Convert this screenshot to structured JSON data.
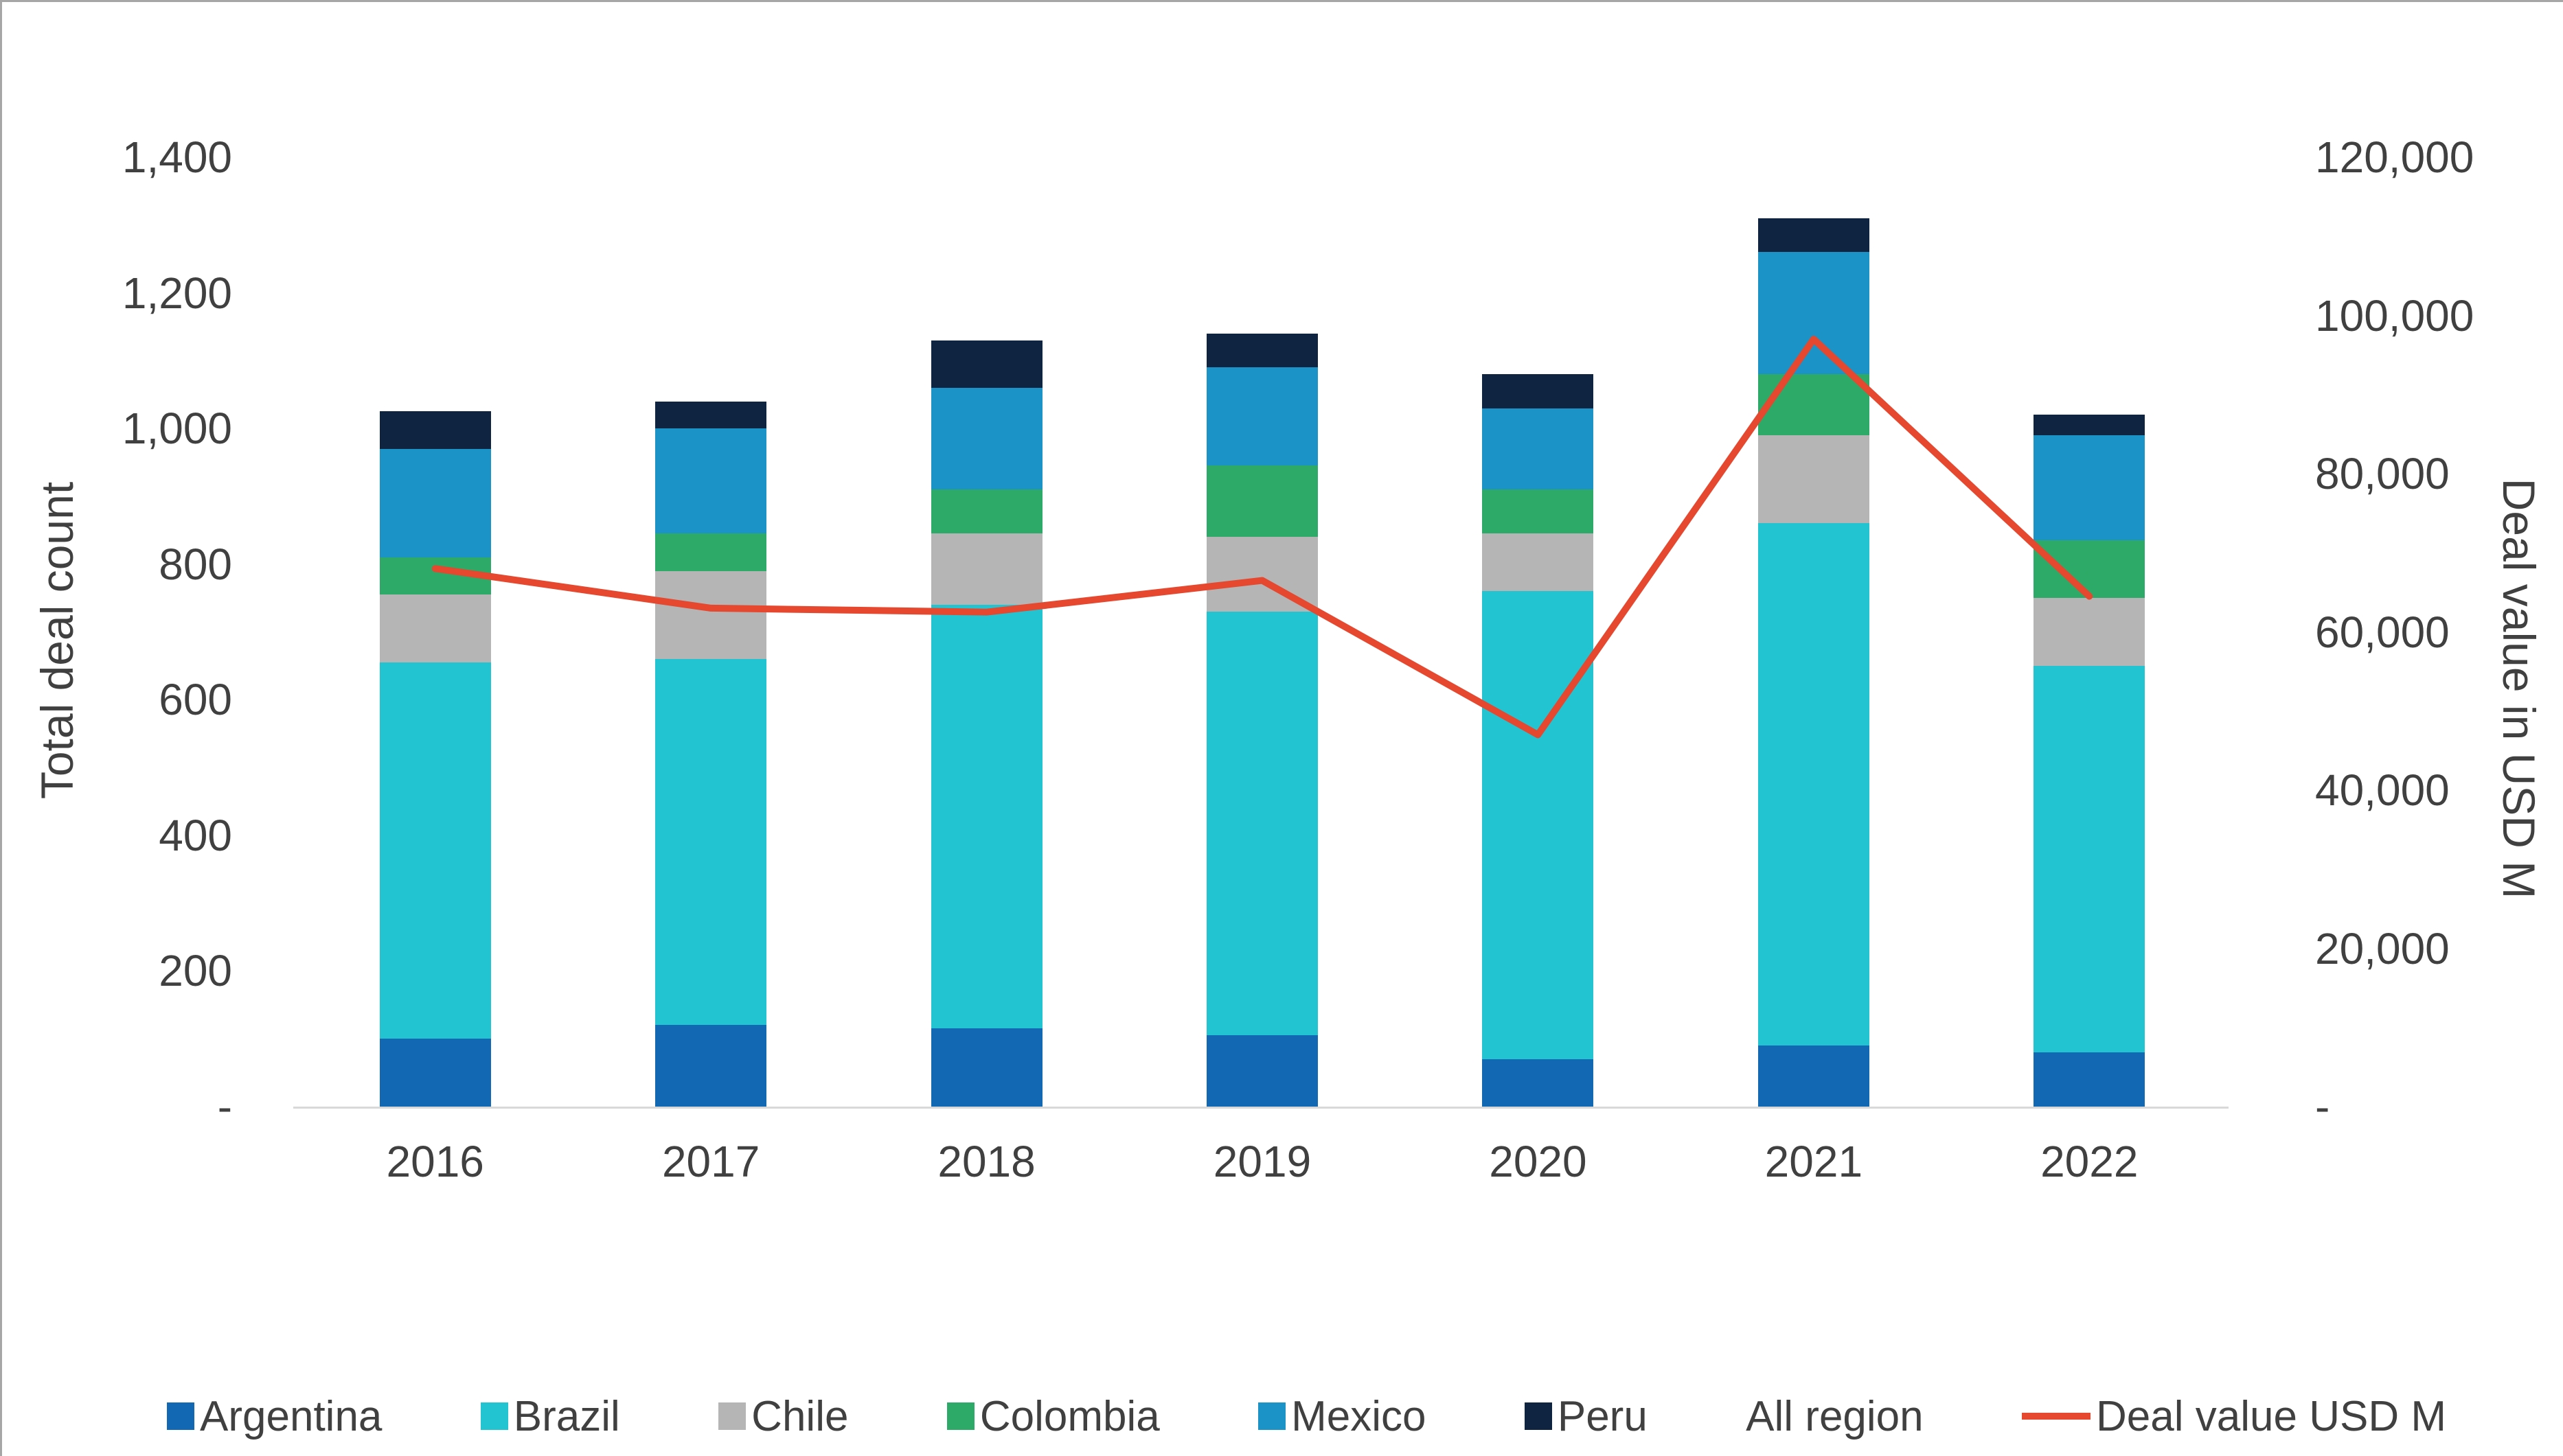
{
  "chart_data": {
    "type": "bar",
    "subtype": "stacked-bar-with-line",
    "title": "",
    "categories": [
      "2016",
      "2017",
      "2018",
      "2019",
      "2020",
      "2021",
      "2022"
    ],
    "series": [
      {
        "name": "Argentina",
        "type": "bar",
        "color": "#1268b3",
        "values": [
          100,
          120,
          115,
          105,
          70,
          90,
          80
        ]
      },
      {
        "name": "Brazil",
        "type": "bar",
        "color": "#23c4d1",
        "values": [
          555,
          540,
          625,
          625,
          690,
          770,
          570
        ]
      },
      {
        "name": "Chile",
        "type": "bar",
        "color": "#b5b5b5",
        "values": [
          100,
          130,
          105,
          110,
          85,
          130,
          100
        ]
      },
      {
        "name": "Colombia",
        "type": "bar",
        "color": "#2da968",
        "values": [
          55,
          55,
          65,
          105,
          65,
          90,
          85
        ]
      },
      {
        "name": "Mexico",
        "type": "bar",
        "color": "#1b93c6",
        "values": [
          160,
          155,
          150,
          145,
          120,
          180,
          155
        ]
      },
      {
        "name": "Peru",
        "type": "bar",
        "color": "#0e2440",
        "values": [
          55,
          40,
          70,
          50,
          50,
          50,
          30
        ]
      }
    ],
    "bar_totals": [
      1025,
      1040,
      1130,
      1140,
      1080,
      1310,
      1020
    ],
    "line_series": {
      "name": "Deal value USD M",
      "type": "line",
      "color": "#e5472f",
      "axis": "right",
      "values": [
        68000,
        63000,
        62500,
        66500,
        47000,
        97000,
        64500
      ]
    },
    "left_axis": {
      "title": "Total deal count",
      "min": 0,
      "max": 1400,
      "step": 200,
      "tick_labels": [
        "-",
        "200",
        "400",
        "600",
        "800",
        "1,000",
        "1,200",
        "1,400"
      ]
    },
    "right_axis": {
      "title": "Deal value in USD M",
      "min": 0,
      "max": 120000,
      "step": 20000,
      "tick_labels": [
        "-",
        "20,000",
        "40,000",
        "60,000",
        "80,000",
        "100,000",
        "120,000"
      ]
    },
    "grid": "off",
    "legend_position": "bottom",
    "legend": [
      {
        "label": "Argentina",
        "swatch": "square",
        "color": "#1268b3"
      },
      {
        "label": "Brazil",
        "swatch": "square",
        "color": "#23c4d1"
      },
      {
        "label": "Chile",
        "swatch": "square",
        "color": "#b5b5b5"
      },
      {
        "label": "Colombia",
        "swatch": "square",
        "color": "#2da968"
      },
      {
        "label": "Mexico",
        "swatch": "square",
        "color": "#1b93c6"
      },
      {
        "label": "Peru",
        "swatch": "square",
        "color": "#0e2440"
      },
      {
        "label": "All region",
        "swatch": "none",
        "color": ""
      },
      {
        "label": "Deal value USD M",
        "swatch": "line",
        "color": "#e5472f"
      }
    ]
  }
}
